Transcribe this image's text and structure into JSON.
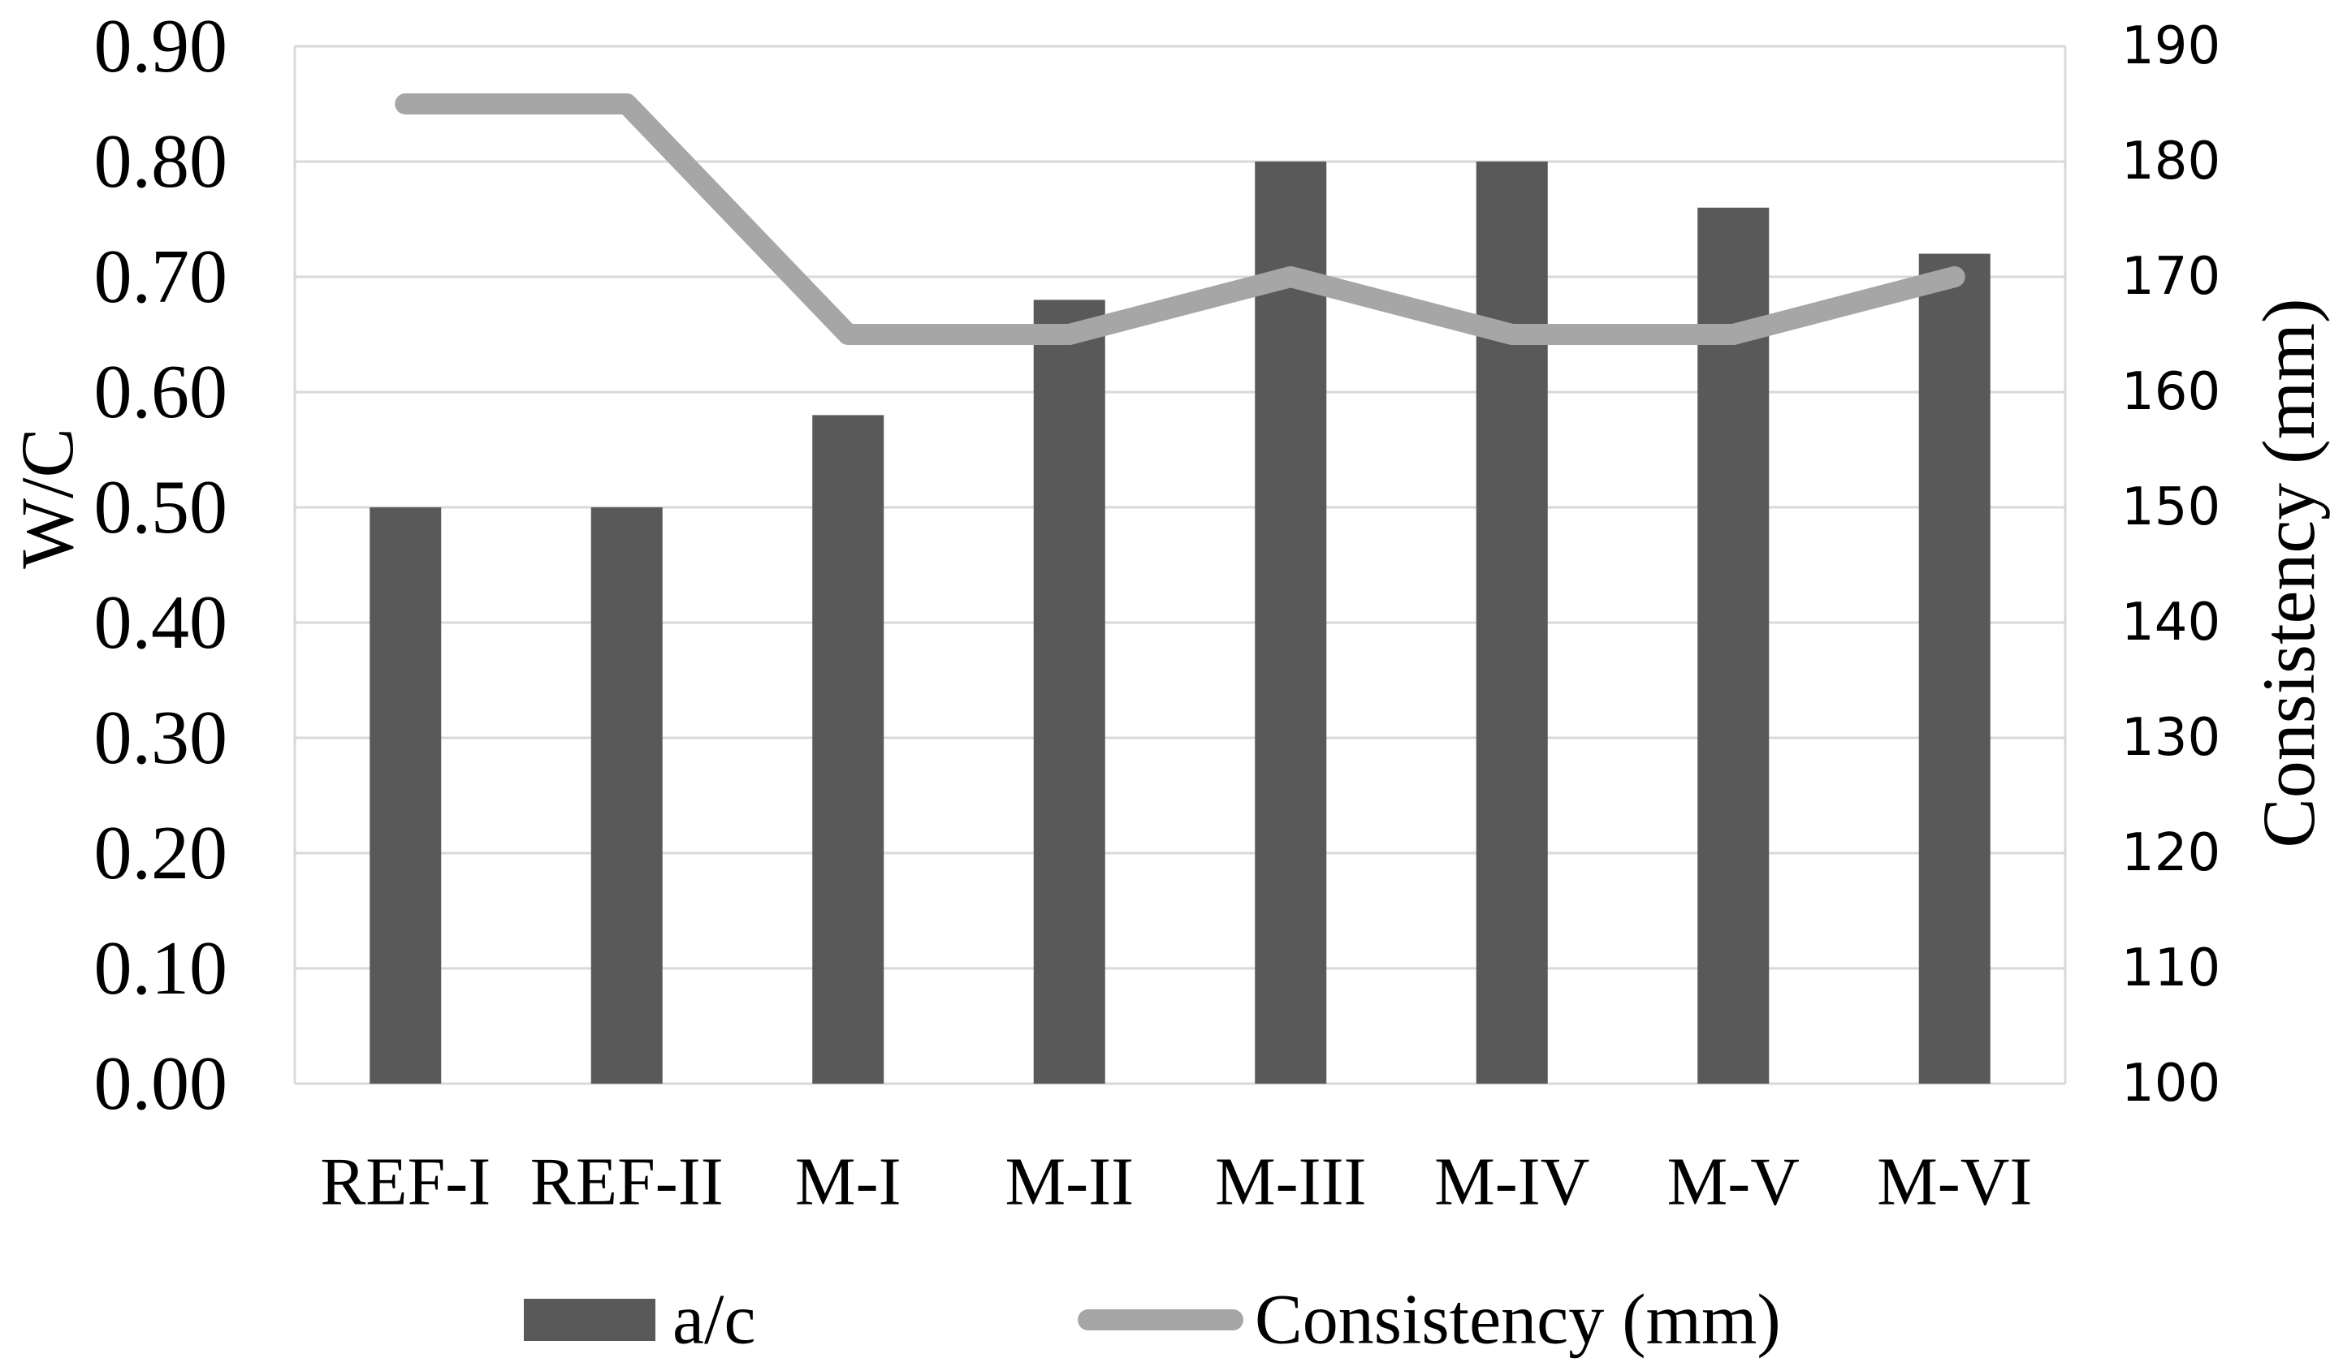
{
  "chart": {
    "left_axis_title": "W/C",
    "right_axis_title": "Consistency (mm)",
    "legend": {
      "bar_label": "a/c",
      "line_label": "Consistency (mm)"
    }
  },
  "chart_data": {
    "type": "combo-bar-line",
    "categories": [
      "REF-I",
      "REF-II",
      "M-I",
      "M-II",
      "M-III",
      "M-IV",
      "M-V",
      "M-VI"
    ],
    "series": [
      {
        "name": "a/c",
        "type": "bar",
        "axis": "left",
        "color": "#595959",
        "values": [
          0.5,
          0.5,
          0.58,
          0.68,
          0.8,
          0.8,
          0.76,
          0.72
        ]
      },
      {
        "name": "Consistency (mm)",
        "type": "line",
        "axis": "right",
        "color": "#a6a6a6",
        "values": [
          185,
          185,
          165,
          165,
          170,
          165,
          165,
          170
        ]
      }
    ],
    "left_axis": {
      "title": "W/C",
      "min": 0.0,
      "max": 0.9,
      "step": 0.1,
      "tick_labels": [
        "0.90",
        "0.80",
        "0.70",
        "0.60",
        "0.50",
        "0.40",
        "0.30",
        "0.20",
        "0.10",
        "0.00"
      ]
    },
    "right_axis": {
      "title": "Consistency (mm)",
      "min": 100,
      "max": 190,
      "step": 10,
      "tick_labels": [
        "190",
        "180",
        "170",
        "160",
        "150",
        "140",
        "130",
        "120",
        "110",
        "100"
      ]
    },
    "grid": true,
    "gridline_color": "#d9d9d9",
    "background": "#ffffff",
    "legend_position": "bottom"
  }
}
